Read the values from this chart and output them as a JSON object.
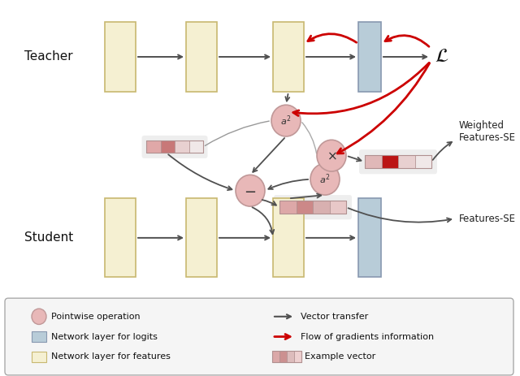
{
  "fig_width": 6.4,
  "fig_height": 4.63,
  "bg_color": "#ffffff",
  "yellow_color": "#f5f0d2",
  "yellow_edge": "#c8b870",
  "blue_color": "#b8ccd8",
  "blue_edge": "#8898b0",
  "circle_fill": "#e8b8b8",
  "circle_edge": "#c09898",
  "red_arrow": "#cc0000",
  "dark_arrow": "#505050",
  "teacher_label": "Teacher",
  "student_label": "Student",
  "loss_label": "$\\mathcal{L}$",
  "a2_label": "$a^2$",
  "minus_label": "$-$",
  "times_label": "$\\times$",
  "weighted_label": "Weighted\nFeatures-SE",
  "features_se_label": "Features-SE"
}
